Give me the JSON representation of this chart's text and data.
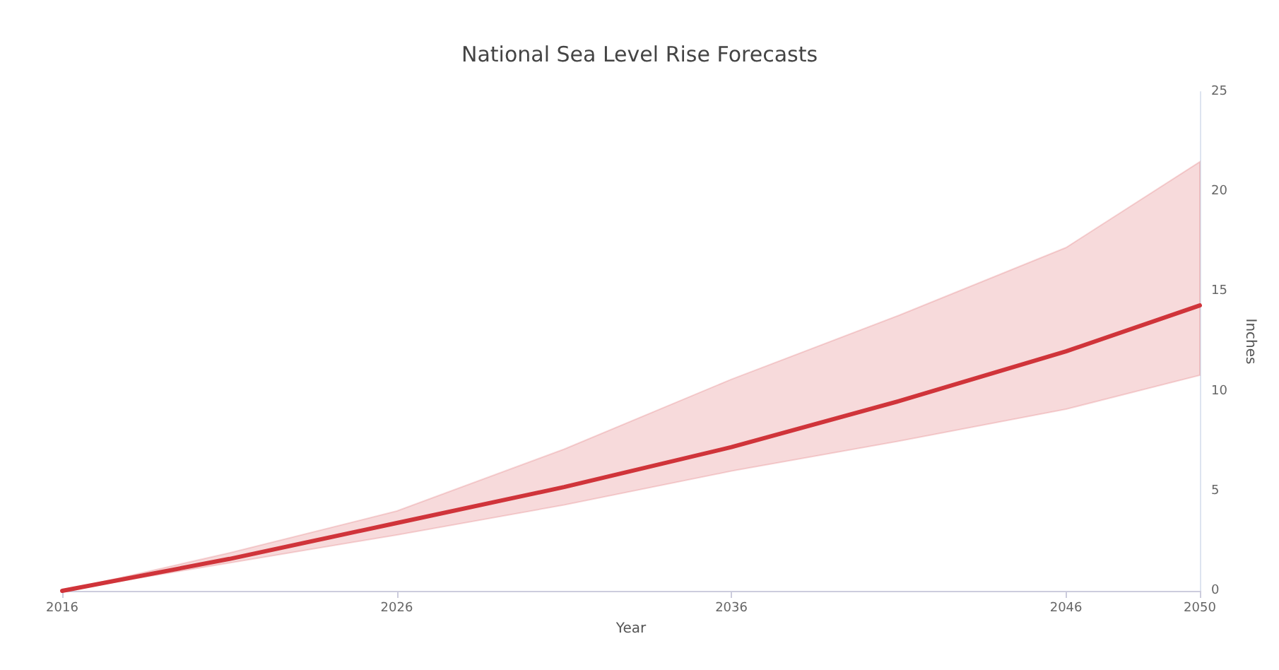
{
  "chart_data": {
    "type": "line",
    "title": "National Sea Level Rise Forecasts",
    "xlabel": "Year",
    "ylabel": "Inches",
    "x": [
      2016,
      2021,
      2026,
      2031,
      2036,
      2041,
      2046,
      2050
    ],
    "series": [
      {
        "color": "#d0343a",
        "values": [
          0,
          1.6,
          3.4,
          5.2,
          7.2,
          9.5,
          12.0,
          14.3
        ],
        "lower": [
          0,
          1.4,
          2.8,
          4.3,
          6.0,
          7.5,
          9.1,
          10.8
        ],
        "upper": [
          0,
          1.9,
          4.0,
          7.1,
          10.6,
          13.8,
          17.2,
          21.5
        ]
      }
    ],
    "xlim": [
      2016,
      2050
    ],
    "xticks": [
      2016,
      2026,
      2036,
      2046,
      2050
    ],
    "ylim": [
      0,
      25
    ],
    "yticks": [
      0,
      5,
      10,
      15,
      20,
      25
    ],
    "grid": false,
    "marker": "none",
    "line_style": "solid"
  }
}
